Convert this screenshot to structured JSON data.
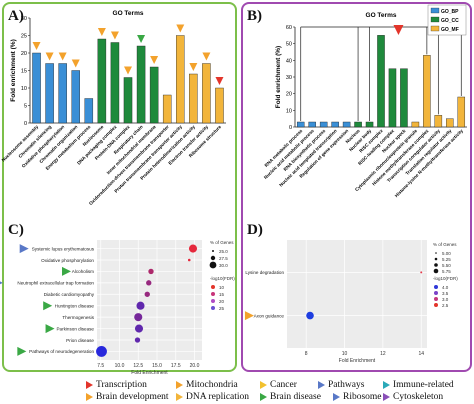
{
  "panels": {
    "a": "A)",
    "b": "B)",
    "c": "C)",
    "d": "D)"
  },
  "chart_data": [
    {
      "type": "bar",
      "title": "GO Terms",
      "ylabel": "Fold enrichment (%)",
      "ylim": [
        0,
        30
      ],
      "yticks": [
        0,
        5,
        10,
        15,
        20,
        25,
        30
      ],
      "categories": [
        "Nucleosome assembly",
        "Chromatin silencing",
        "Oxidative phosphorylation",
        "Chromatin organization",
        "Energy metabolism process",
        "Nucleosome",
        "DNA packaging complex",
        "Protein-DNA complex",
        "Respiratory chain",
        "Inner mitochondrial membrane",
        "Oxidoreduction-driven transmembrane transporter",
        "Proton transmembrane transporter activity",
        "Protein heterodimerization activity",
        "Electron transfer activity",
        "Ribosome structure"
      ],
      "values": [
        20,
        17,
        17,
        15,
        7,
        24,
        23,
        13,
        22,
        16,
        8,
        25,
        14,
        17,
        10
      ],
      "groups": [
        "BP",
        "BP",
        "BP",
        "BP",
        "BP",
        "CC",
        "CC",
        "CC",
        "CC",
        "CC",
        "MF",
        "MF",
        "MF",
        "MF",
        "MF"
      ],
      "markers": [
        "orange",
        "orange",
        "orange",
        "orange",
        "none",
        "orange",
        "orange",
        "orange",
        "green",
        "orange",
        "none",
        "orange",
        "orange",
        "orange",
        "red"
      ]
    },
    {
      "type": "bar",
      "title": "GO Terms",
      "ylabel": "Fold enrichment (%)",
      "ylim": [
        0,
        60
      ],
      "yticks": [
        0,
        10,
        20,
        30,
        40,
        50,
        60
      ],
      "legend": [
        "GO_BP",
        "GO_CC",
        "GO_MF"
      ],
      "categories": [
        "RNA metabolic process",
        "Nucleic acid metabolic process",
        "RNA biosynthetic process",
        "Nucleic acid templated transcription",
        "Regulation of gene expression",
        "Nucleus",
        "Nuclear body",
        "RISC complex",
        "RISC-loading complex",
        "Nuclear speck",
        "Cytoplasmic ribonucleoprotein granule",
        "Histone methyltransferase complex",
        "Transcription coregulator activity",
        "Translation regulator activity",
        "Histone-lysine N-methyltransferase activity"
      ],
      "values": [
        3,
        3,
        3,
        3,
        3,
        3,
        3,
        55,
        35,
        35,
        3,
        43,
        7,
        5,
        18
      ],
      "groups": [
        "BP",
        "BP",
        "BP",
        "BP",
        "BP",
        "CC",
        "CC",
        "CC",
        "CC",
        "CC",
        "MF",
        "MF",
        "MF",
        "MF",
        "MF"
      ]
    },
    {
      "type": "scatter",
      "xlabel": "Fold Enrichment",
      "xlim": [
        7,
        21
      ],
      "xticks": [
        7.5,
        10.0,
        12.5,
        15.0,
        17.5,
        20.0
      ],
      "categories": [
        "Systemic lupus erythematosus",
        "Oxidative phosphorylation",
        "Alcoholism",
        "Neutrophil extracellular trap formation",
        "Diabetic cardiomyopathy",
        "Huntington disease",
        "Thermogenesis",
        "Parkinson disease",
        "Prion disease",
        "Pathways of neurodegeneration"
      ],
      "values": [
        19.8,
        19.3,
        14.2,
        13.9,
        13.7,
        12.8,
        12.5,
        12.6,
        12.4,
        7.6
      ],
      "genes": [
        27.5,
        22.5,
        25,
        25,
        25,
        27.5,
        27.5,
        27.5,
        25,
        30
      ],
      "log10fdr": [
        10,
        10,
        15,
        17,
        17,
        22,
        20,
        22,
        22,
        27
      ],
      "markers": [
        "blue",
        "none",
        "green",
        "blue",
        "none",
        "green",
        "none",
        "green",
        "none",
        "green"
      ],
      "size_legend_title": "% of Genes",
      "size_legend": [
        "25.0",
        "27.5",
        "30.0"
      ],
      "color_legend_title": "-log10(FDR)",
      "color_legend": [
        "10",
        "15",
        "20",
        "25"
      ]
    },
    {
      "type": "scatter",
      "xlabel": "Fold Enrichment",
      "xticks": [
        "8",
        "10",
        "12",
        "14"
      ],
      "categories": [
        "Lysine degradation",
        "Axon guidance"
      ],
      "values": [
        14.0,
        8.2
      ],
      "markers": [
        "none",
        "orange"
      ],
      "size_legend_title": "% of Genes",
      "size_legend": [
        "5.00",
        "5.25",
        "5.50",
        "5.75"
      ],
      "color_legend_title": "-log10(FDR)",
      "color_legend": [
        "4.0",
        "3.5",
        "3.0",
        "2.5"
      ]
    }
  ],
  "colors": {
    "BP": "#3a8fd6",
    "CC": "#1f8a3c",
    "MF": "#f2b53b",
    "orange": "#f3a22c",
    "red": "#e3352b",
    "green": "#3aa845",
    "blue": "#5978c7",
    "purple": "#b04cc4"
  },
  "legend": [
    {
      "label": "Transcription",
      "color": "#e3352b"
    },
    {
      "label": "Mitochondria",
      "color": "#f3a22c"
    },
    {
      "label": "Cancer",
      "color": "#f2c12e"
    },
    {
      "label": "Pathways",
      "color": "#5978c7"
    },
    {
      "label": "Immune-related",
      "color": "#2aa9b8"
    },
    {
      "label": "Brain development",
      "color": "#f3a22c"
    },
    {
      "label": "DNA replication",
      "color": "#f2b53b"
    },
    {
      "label": "Brain disease",
      "color": "#3aa845"
    },
    {
      "label": "Ribosome",
      "color": "#5978c7"
    },
    {
      "label": "Cytoskeleton",
      "color": "#8a4fb8"
    }
  ]
}
